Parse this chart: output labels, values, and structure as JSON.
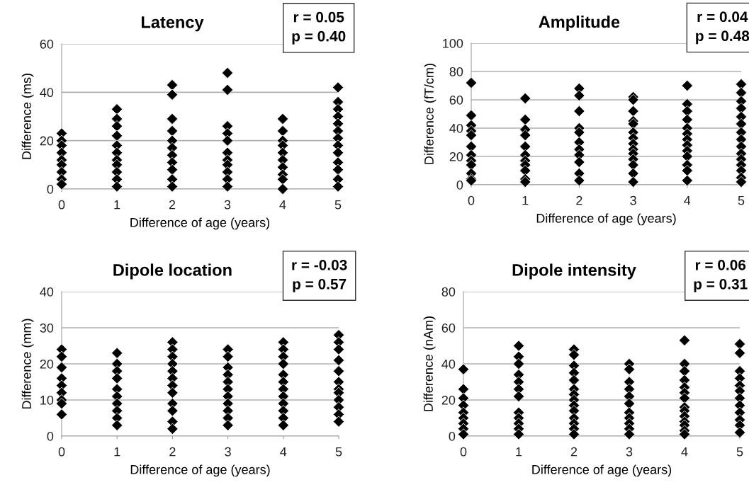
{
  "chart_data": [
    {
      "type": "scatter",
      "title": "Latency",
      "xlabel": "Difference of age (years)",
      "ylabel": "Difference (ms)",
      "annotations": [
        "r = 0.05\np = 0.40"
      ],
      "xlim": [
        0,
        5
      ],
      "xticks": [
        0,
        1,
        2,
        3,
        4,
        5
      ],
      "ylim": [
        0,
        60
      ],
      "yticks": [
        0,
        20,
        40,
        60
      ],
      "grid": "y",
      "marker": "diamond",
      "series": [
        {
          "color": "#000000",
          "x": [
            0,
            0,
            0,
            0,
            0,
            0,
            0,
            0,
            0,
            1,
            1,
            1,
            1,
            1,
            1,
            1,
            1,
            1,
            1,
            1,
            2,
            2,
            2,
            2,
            2,
            2,
            2,
            2,
            2,
            2,
            2,
            3,
            3,
            3,
            3,
            3,
            3,
            3,
            3,
            3,
            3,
            3,
            4,
            4,
            4,
            4,
            4,
            4,
            4,
            4,
            4,
            4,
            5,
            5,
            5,
            5,
            5,
            5,
            5,
            5,
            5,
            5,
            5,
            5,
            5
          ],
          "values": [
            23,
            20,
            18,
            15,
            12,
            10,
            7,
            4,
            2,
            33,
            29,
            26,
            22,
            18,
            15,
            12,
            10,
            7,
            4,
            1,
            43,
            39,
            29,
            24,
            20,
            17,
            14,
            11,
            8,
            4,
            1,
            48,
            41,
            26,
            23,
            20,
            15,
            12,
            10,
            7,
            4,
            1,
            29,
            24,
            20,
            18,
            15,
            12,
            9,
            6,
            4,
            0,
            42,
            36,
            33,
            30,
            27,
            24,
            21,
            18,
            15,
            11,
            8,
            4,
            1
          ]
        }
      ]
    },
    {
      "type": "scatter",
      "title": "Amplitude",
      "xlabel": "Difference of age (years)",
      "ylabel": "Difference (fT/cm)",
      "annotations": [
        "r = 0.04\np = 0.48"
      ],
      "xlim": [
        0,
        5
      ],
      "xticks": [
        0,
        1,
        2,
        3,
        4,
        5
      ],
      "ylim": [
        0,
        100
      ],
      "yticks": [
        0,
        20,
        40,
        60,
        80,
        100
      ],
      "grid": "y",
      "marker": "diamond",
      "series": [
        {
          "color": "#000000",
          "x": [
            0,
            0,
            0,
            0,
            0,
            0,
            0,
            0,
            0,
            0,
            0,
            0,
            1,
            1,
            1,
            1,
            1,
            1,
            1,
            1,
            1,
            1,
            1,
            2,
            2,
            2,
            2,
            2,
            2,
            2,
            2,
            2,
            2,
            2,
            3,
            3,
            3,
            3,
            3,
            3,
            3,
            3,
            3,
            3,
            3,
            3,
            3,
            3,
            4,
            4,
            4,
            4,
            4,
            4,
            4,
            4,
            4,
            4,
            4,
            4,
            4,
            5,
            5,
            5,
            5,
            5,
            5,
            5,
            5,
            5,
            5,
            5,
            5,
            5,
            5,
            5
          ],
          "values": [
            72,
            49,
            42,
            38,
            35,
            27,
            21,
            17,
            14,
            8,
            4,
            3,
            61,
            46,
            39,
            35,
            27,
            21,
            17,
            14,
            10,
            4,
            2,
            68,
            63,
            52,
            40,
            37,
            30,
            25,
            21,
            16,
            8,
            3,
            62,
            60,
            52,
            45,
            43,
            37,
            33,
            29,
            25,
            22,
            18,
            14,
            8,
            2,
            70,
            57,
            52,
            46,
            40,
            36,
            32,
            28,
            24,
            20,
            14,
            10,
            3,
            71,
            65,
            59,
            54,
            48,
            43,
            37,
            32,
            27,
            22,
            18,
            14,
            10,
            5,
            2
          ]
        }
      ]
    },
    {
      "type": "scatter",
      "title": "Dipole location",
      "xlabel": "Difference of age (years)",
      "ylabel": "Difference (mm)",
      "annotations": [
        "r = -0.03\np = 0.57"
      ],
      "xlim": [
        0,
        5
      ],
      "xticks": [
        0,
        1,
        2,
        3,
        4,
        5
      ],
      "ylim": [
        0,
        40
      ],
      "yticks": [
        0,
        10,
        20,
        30,
        40
      ],
      "grid": "y",
      "marker": "diamond",
      "series": [
        {
          "color": "#000000",
          "x": [
            0,
            0,
            0,
            0,
            0,
            0,
            0,
            0,
            0,
            1,
            1,
            1,
            1,
            1,
            1,
            1,
            1,
            1,
            1,
            2,
            2,
            2,
            2,
            2,
            2,
            2,
            2,
            2,
            2,
            2,
            2,
            3,
            3,
            3,
            3,
            3,
            3,
            3,
            3,
            3,
            3,
            3,
            4,
            4,
            4,
            4,
            4,
            4,
            4,
            4,
            4,
            4,
            4,
            4,
            5,
            5,
            5,
            5,
            5,
            5,
            5,
            5,
            5,
            5,
            5,
            5
          ],
          "values": [
            24,
            22,
            19,
            16,
            14,
            12,
            10,
            9,
            6,
            23,
            20,
            18,
            16,
            13,
            11,
            9,
            7,
            5,
            3,
            26,
            24,
            22,
            20,
            18,
            16,
            14,
            12,
            9,
            7,
            4,
            2,
            24,
            22,
            19,
            17,
            15,
            13,
            11,
            9,
            7,
            5,
            3,
            26,
            24,
            22,
            20,
            17,
            15,
            13,
            11,
            9,
            7,
            5,
            3,
            28,
            26,
            24,
            21,
            18,
            15,
            13,
            12,
            10,
            8,
            6,
            4
          ]
        }
      ]
    },
    {
      "type": "scatter",
      "title": "Dipole intensity",
      "xlabel": "Difference of age (years)",
      "ylabel": "Difference (nAm)",
      "annotations": [
        "r = 0.06\np = 0.31"
      ],
      "xlim": [
        0,
        5
      ],
      "xticks": [
        0,
        1,
        2,
        3,
        4,
        5
      ],
      "ylim": [
        0,
        80
      ],
      "yticks": [
        0,
        20,
        40,
        60,
        80
      ],
      "grid": "y",
      "marker": "diamond",
      "series": [
        {
          "color": "#000000",
          "x": [
            0,
            0,
            0,
            0,
            0,
            0,
            0,
            0,
            0,
            1,
            1,
            1,
            1,
            1,
            1,
            1,
            1,
            1,
            1,
            1,
            1,
            2,
            2,
            2,
            2,
            2,
            2,
            2,
            2,
            2,
            2,
            2,
            2,
            2,
            2,
            3,
            3,
            3,
            3,
            3,
            3,
            3,
            3,
            3,
            3,
            3,
            4,
            4,
            4,
            4,
            4,
            4,
            4,
            4,
            4,
            4,
            4,
            4,
            4,
            4,
            5,
            5,
            5,
            5,
            5,
            5,
            5,
            5,
            5,
            5,
            5,
            5
          ],
          "values": [
            37,
            26,
            21,
            17,
            13,
            10,
            7,
            4,
            1,
            50,
            44,
            40,
            34,
            30,
            26,
            22,
            13,
            10,
            7,
            4,
            1,
            48,
            45,
            39,
            35,
            31,
            26,
            23,
            20,
            17,
            14,
            10,
            7,
            4,
            1,
            40,
            37,
            30,
            26,
            22,
            18,
            13,
            10,
            7,
            4,
            1,
            53,
            40,
            36,
            31,
            27,
            24,
            21,
            16,
            14,
            11,
            8,
            6,
            3,
            1,
            51,
            46,
            36,
            32,
            28,
            25,
            21,
            17,
            13,
            9,
            6,
            2
          ]
        }
      ]
    }
  ]
}
